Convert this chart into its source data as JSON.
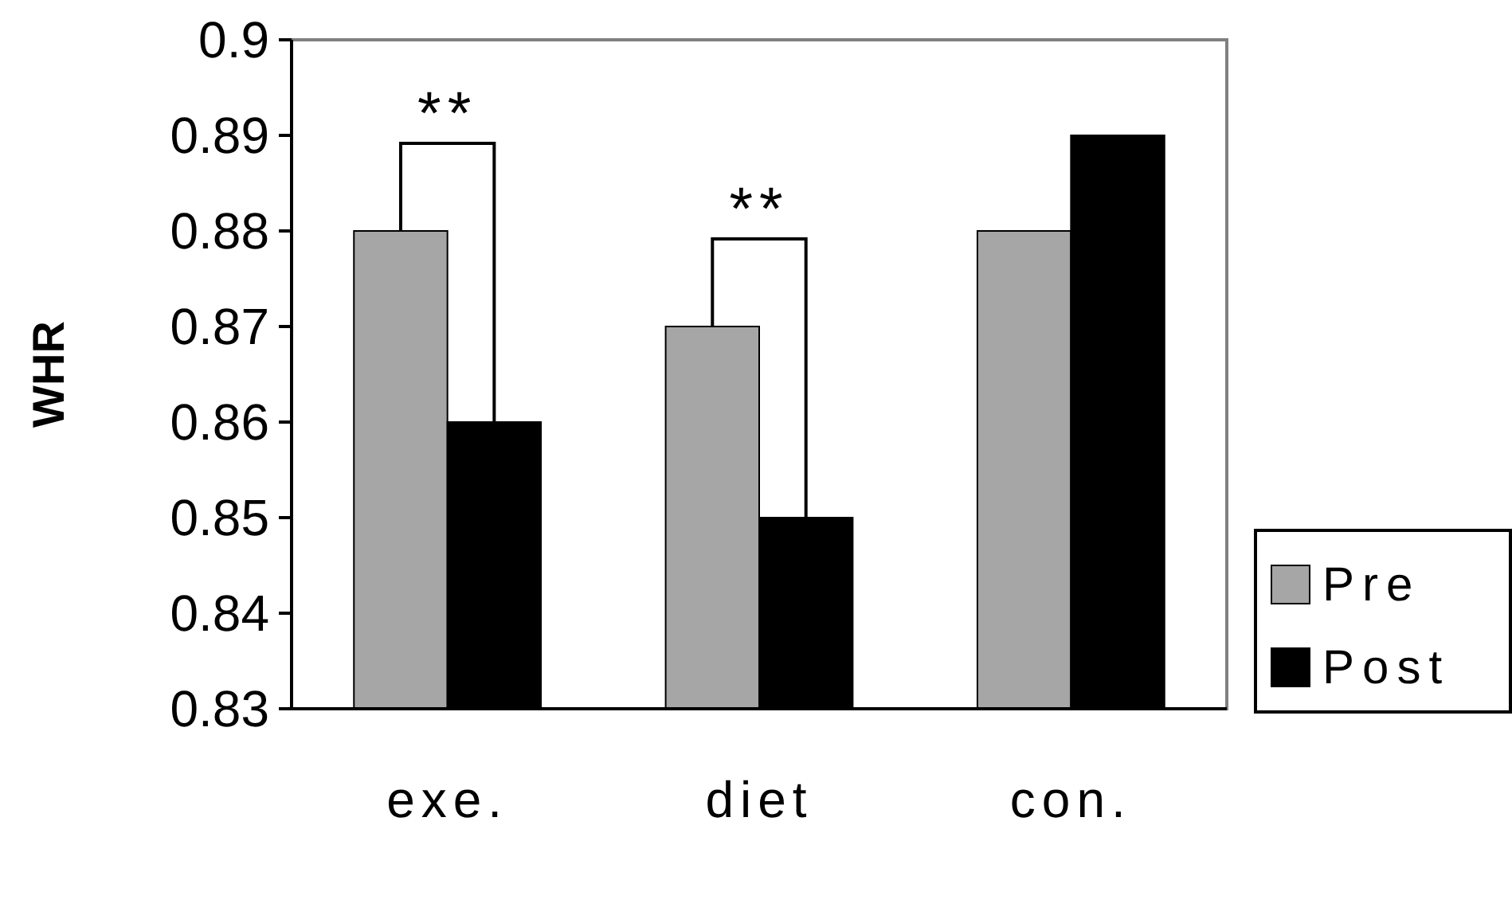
{
  "chart_data": {
    "type": "bar",
    "ylabel": "WHR",
    "categories": [
      "exe.",
      "diet",
      "con."
    ],
    "series": [
      {
        "name": "Pre",
        "color": "#a6a6a6",
        "values": [
          0.88,
          0.87,
          0.88
        ]
      },
      {
        "name": "Post",
        "color": "#000000",
        "values": [
          0.86,
          0.85,
          0.89
        ]
      }
    ],
    "ylim": [
      0.83,
      0.9
    ],
    "yticks": [
      0.83,
      0.84,
      0.85,
      0.86,
      0.87,
      0.88,
      0.89,
      0.9
    ],
    "grid": false,
    "legend": "bottom right",
    "annotations": [
      "**",
      "**"
    ]
  }
}
